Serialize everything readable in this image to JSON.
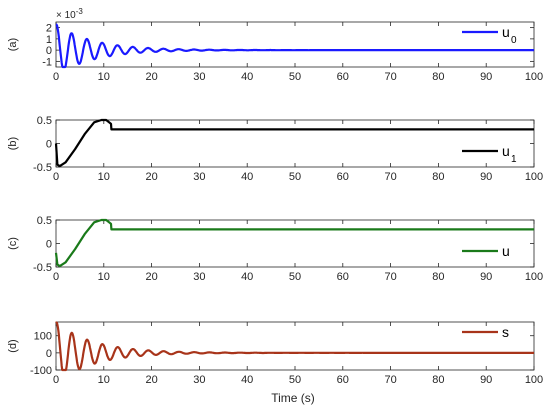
{
  "figure": {
    "xlabel": "Time (s)"
  },
  "chart_data": [
    {
      "type": "line",
      "panel_label": "(a)",
      "legend": {
        "text": "u",
        "subscript": "0",
        "color": "#1a1aff"
      },
      "exponent_label": "× 10",
      "exponent_power": "-3",
      "xlim": [
        0,
        100
      ],
      "ylim": [
        -1.5,
        2.5
      ],
      "xticks": [
        "0",
        "10",
        "20",
        "30",
        "40",
        "50",
        "60",
        "70",
        "80",
        "90",
        "100"
      ],
      "yticks": [
        {
          "v": -1,
          "label": "-1"
        },
        {
          "v": 0,
          "label": "0"
        },
        {
          "v": 1,
          "label": "1"
        },
        {
          "v": 2,
          "label": "2"
        }
      ],
      "grid": false,
      "legend_position": "top-right",
      "series": [
        {
          "color": "#1a1aff",
          "model": "damped_sine",
          "amplitude": 2.3,
          "decay": 0.13,
          "period": 3.2,
          "phase": 1.4,
          "offset": 0
        }
      ]
    },
    {
      "type": "line",
      "panel_label": "(b)",
      "legend": {
        "text": "u",
        "subscript": "1",
        "color": "#000000"
      },
      "xlim": [
        0,
        100
      ],
      "ylim": [
        -0.5,
        0.5
      ],
      "xticks": [
        "0",
        "10",
        "20",
        "30",
        "40",
        "50",
        "60",
        "70",
        "80",
        "90",
        "100"
      ],
      "yticks": [
        {
          "v": -0.5,
          "label": "-0.5"
        },
        {
          "v": 0,
          "label": "0"
        },
        {
          "v": 0.5,
          "label": "0.5"
        }
      ],
      "grid": false,
      "legend_position": "bottom-right",
      "series": [
        {
          "color": "#000000",
          "points": [
            [
              0,
              0
            ],
            [
              0.3,
              -0.45
            ],
            [
              0.8,
              -0.48
            ],
            [
              2,
              -0.4
            ],
            [
              4,
              -0.12
            ],
            [
              6,
              0.2
            ],
            [
              8,
              0.45
            ],
            [
              9.5,
              0.52
            ],
            [
              10.5,
              0.5
            ],
            [
              11.5,
              0.42
            ],
            [
              11.6,
              0.3
            ],
            [
              100,
              0.3
            ]
          ]
        }
      ]
    },
    {
      "type": "line",
      "panel_label": "(c)",
      "legend": {
        "text": "u",
        "subscript": "",
        "color": "#1a7a1a"
      },
      "xlim": [
        0,
        100
      ],
      "ylim": [
        -0.5,
        0.5
      ],
      "xticks": [
        "0",
        "10",
        "20",
        "30",
        "40",
        "50",
        "60",
        "70",
        "80",
        "90",
        "100"
      ],
      "yticks": [
        {
          "v": -0.5,
          "label": "-0.5"
        },
        {
          "v": 0,
          "label": "0"
        },
        {
          "v": 0.5,
          "label": "0.5"
        }
      ],
      "grid": false,
      "legend_position": "bottom-right",
      "series": [
        {
          "color": "#1a7a1a",
          "points": [
            [
              0,
              -0.2
            ],
            [
              0.3,
              -0.45
            ],
            [
              0.8,
              -0.48
            ],
            [
              2,
              -0.4
            ],
            [
              4,
              -0.12
            ],
            [
              6,
              0.2
            ],
            [
              8,
              0.45
            ],
            [
              9.5,
              0.52
            ],
            [
              10.5,
              0.5
            ],
            [
              11.5,
              0.42
            ],
            [
              11.6,
              0.3
            ],
            [
              100,
              0.3
            ]
          ]
        }
      ]
    },
    {
      "type": "line",
      "panel_label": "(d)",
      "legend": {
        "text": "s",
        "subscript": "",
        "color": "#a8341a"
      },
      "xlim": [
        0,
        100
      ],
      "ylim": [
        -100,
        180
      ],
      "xticks": [
        "0",
        "10",
        "20",
        "30",
        "40",
        "50",
        "60",
        "70",
        "80",
        "90",
        "100"
      ],
      "yticks": [
        {
          "v": -100,
          "label": "-100"
        },
        {
          "v": 0,
          "label": "0"
        },
        {
          "v": 100,
          "label": "100"
        }
      ],
      "grid": false,
      "legend_position": "top-right",
      "series": [
        {
          "color": "#a8341a",
          "model": "damped_sine",
          "amplitude": 180,
          "decay": 0.13,
          "period": 3.2,
          "phase": 1.3,
          "offset": 0
        }
      ]
    }
  ]
}
